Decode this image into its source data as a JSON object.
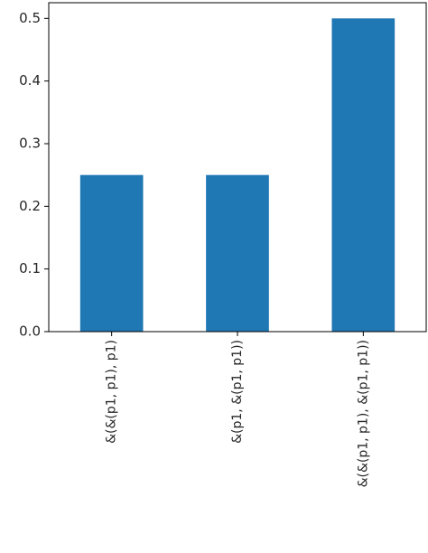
{
  "chart_data": {
    "type": "bar",
    "title": "",
    "xlabel": "",
    "ylabel": "",
    "categories": [
      "&(&(p1, p1), p1)",
      "&(p1, &(p1, p1))",
      "&(&(p1, p1), &(p1, p1))"
    ],
    "values": [
      0.25,
      0.25,
      0.5
    ],
    "ylim": [
      0,
      0.525
    ],
    "yticks": [
      "0.0",
      "0.1",
      "0.2",
      "0.3",
      "0.4",
      "0.5"
    ],
    "bar_color": "#1f77b4",
    "grid": false,
    "legend": "none"
  }
}
